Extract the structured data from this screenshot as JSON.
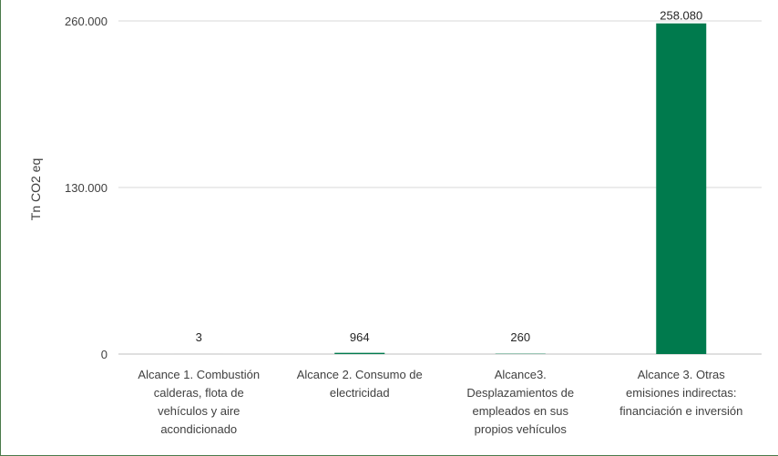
{
  "chart_data": {
    "type": "bar",
    "ylabel": "Tn CO2 eq",
    "ylim": [
      0,
      260000
    ],
    "yticks": [
      0,
      130000,
      260000
    ],
    "ytick_labels": [
      "0",
      "130.000",
      "260.000"
    ],
    "grid": true,
    "categories": [
      [
        "Alcance 1. Combustión",
        "calderas, flota de",
        "vehículos y aire",
        "acondicionado"
      ],
      [
        "Alcance 2. Consumo de",
        "electricidad"
      ],
      [
        "Alcance3.",
        "Desplazamientos de",
        "empleados en sus",
        "propios vehículos"
      ],
      [
        "Alcance 3. Otras",
        "emisiones indirectas:",
        "financiación e inversión"
      ]
    ],
    "values": [
      3,
      964,
      260,
      258080
    ],
    "data_labels": [
      "3",
      "964",
      "260",
      "258.080"
    ],
    "colors": {
      "bar": "#007a4d",
      "grid": "#d9d9d9",
      "axis": "#bfbfbf"
    }
  }
}
